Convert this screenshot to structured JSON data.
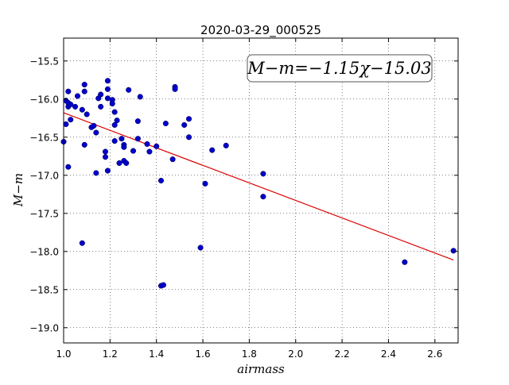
{
  "chart_data": {
    "type": "scatter",
    "title": "2020-03-29_000525",
    "xlabel": "airmass",
    "ylabel": "M−m",
    "xlim": [
      1.0,
      2.7
    ],
    "ylim": [
      -19.2,
      -15.2
    ],
    "y_inverted": true,
    "grid": true,
    "grid_style": "dotted",
    "xticks": [
      1.0,
      1.2,
      1.4,
      1.6,
      1.8,
      2.0,
      2.2,
      2.4,
      2.6
    ],
    "xtick_labels": [
      "1.0",
      "1.2",
      "1.4",
      "1.6",
      "1.8",
      "2.0",
      "2.2",
      "2.4",
      "2.6"
    ],
    "yticks": [
      -15.5,
      -16.0,
      -16.5,
      -17.0,
      -17.5,
      -18.0,
      -18.5,
      -19.0
    ],
    "ytick_labels": [
      "−15.5",
      "−16.0",
      "−16.5",
      "−17.0",
      "−17.5",
      "−18.0",
      "−18.5",
      "−19.0"
    ],
    "annotation": "M−m=−1.15χ−15.03",
    "colors": {
      "points": "#0000cc",
      "fit_line": "#dd0000"
    },
    "fit": {
      "slope": -1.15,
      "intercept": -15.03,
      "x_range": [
        1.0,
        2.68
      ]
    },
    "points": [
      {
        "x": 1.0,
        "y": -16.56
      },
      {
        "x": 1.01,
        "y": -16.33
      },
      {
        "x": 1.01,
        "y": -16.02
      },
      {
        "x": 1.02,
        "y": -16.1
      },
      {
        "x": 1.02,
        "y": -16.05
      },
      {
        "x": 1.02,
        "y": -15.9
      },
      {
        "x": 1.02,
        "y": -16.89
      },
      {
        "x": 1.03,
        "y": -16.07
      },
      {
        "x": 1.03,
        "y": -16.27
      },
      {
        "x": 1.05,
        "y": -16.1
      },
      {
        "x": 1.06,
        "y": -15.96
      },
      {
        "x": 1.08,
        "y": -16.14
      },
      {
        "x": 1.08,
        "y": -17.89
      },
      {
        "x": 1.09,
        "y": -15.81
      },
      {
        "x": 1.09,
        "y": -15.9
      },
      {
        "x": 1.09,
        "y": -16.6
      },
      {
        "x": 1.1,
        "y": -16.2
      },
      {
        "x": 1.12,
        "y": -16.37
      },
      {
        "x": 1.13,
        "y": -16.35
      },
      {
        "x": 1.14,
        "y": -16.44
      },
      {
        "x": 1.14,
        "y": -16.97
      },
      {
        "x": 1.15,
        "y": -15.99
      },
      {
        "x": 1.16,
        "y": -15.94
      },
      {
        "x": 1.16,
        "y": -16.1
      },
      {
        "x": 1.18,
        "y": -16.69
      },
      {
        "x": 1.18,
        "y": -16.76
      },
      {
        "x": 1.19,
        "y": -15.76
      },
      {
        "x": 1.19,
        "y": -15.87
      },
      {
        "x": 1.19,
        "y": -15.99
      },
      {
        "x": 1.19,
        "y": -16.94
      },
      {
        "x": 1.21,
        "y": -16.01
      },
      {
        "x": 1.21,
        "y": -16.06
      },
      {
        "x": 1.22,
        "y": -16.17
      },
      {
        "x": 1.22,
        "y": -16.34
      },
      {
        "x": 1.22,
        "y": -16.55
      },
      {
        "x": 1.23,
        "y": -16.28
      },
      {
        "x": 1.24,
        "y": -16.84
      },
      {
        "x": 1.25,
        "y": -16.52
      },
      {
        "x": 1.26,
        "y": -16.6
      },
      {
        "x": 1.26,
        "y": -16.63
      },
      {
        "x": 1.26,
        "y": -16.81
      },
      {
        "x": 1.27,
        "y": -16.84
      },
      {
        "x": 1.28,
        "y": -15.88
      },
      {
        "x": 1.3,
        "y": -16.68
      },
      {
        "x": 1.32,
        "y": -16.29
      },
      {
        "x": 1.32,
        "y": -16.52
      },
      {
        "x": 1.33,
        "y": -15.97
      },
      {
        "x": 1.36,
        "y": -16.59
      },
      {
        "x": 1.37,
        "y": -16.69
      },
      {
        "x": 1.4,
        "y": -16.62
      },
      {
        "x": 1.42,
        "y": -17.07
      },
      {
        "x": 1.42,
        "y": -18.45
      },
      {
        "x": 1.43,
        "y": -18.44
      },
      {
        "x": 1.44,
        "y": -16.32
      },
      {
        "x": 1.47,
        "y": -16.79
      },
      {
        "x": 1.48,
        "y": -15.84
      },
      {
        "x": 1.48,
        "y": -15.87
      },
      {
        "x": 1.52,
        "y": -16.34
      },
      {
        "x": 1.54,
        "y": -16.5
      },
      {
        "x": 1.54,
        "y": -16.26
      },
      {
        "x": 1.59,
        "y": -17.95
      },
      {
        "x": 1.61,
        "y": -17.11
      },
      {
        "x": 1.64,
        "y": -16.67
      },
      {
        "x": 1.7,
        "y": -16.61
      },
      {
        "x": 1.86,
        "y": -17.28
      },
      {
        "x": 1.86,
        "y": -16.98
      },
      {
        "x": 2.47,
        "y": -18.14
      },
      {
        "x": 2.68,
        "y": -17.99
      }
    ]
  }
}
